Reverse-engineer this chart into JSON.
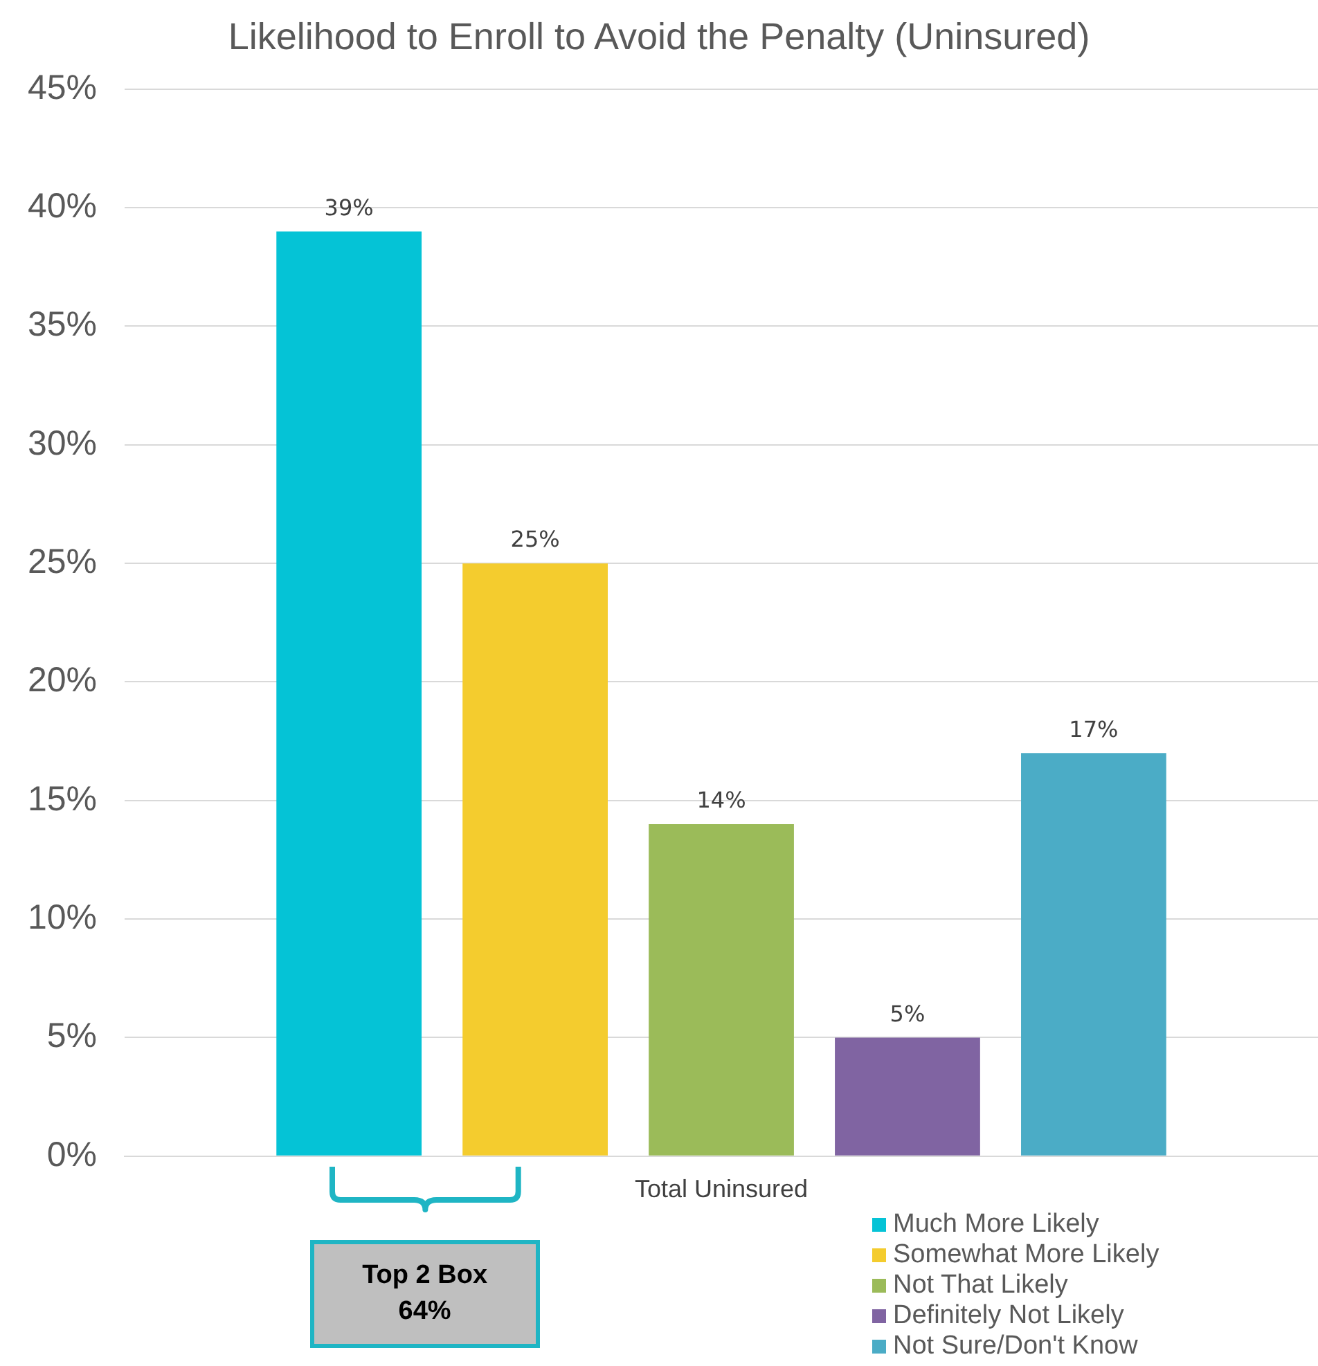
{
  "chart_data": {
    "type": "bar",
    "title": "Likelihood to Enroll to Avoid the Penalty (Uninsured)",
    "categories": [
      "Total Uninsured"
    ],
    "series": [
      {
        "name": "Much More Likely",
        "color": "#05c3d6",
        "values": [
          39
        ],
        "value_labels": [
          "39%"
        ]
      },
      {
        "name": "Somewhat More Likely",
        "color": "#f4cc2e",
        "values": [
          25
        ],
        "value_labels": [
          "25%"
        ]
      },
      {
        "name": "Not That Likely",
        "color": "#9bbb59",
        "values": [
          14
        ],
        "value_labels": [
          "14%"
        ]
      },
      {
        "name": "Definitely Not Likely",
        "color": "#8064a2",
        "values": [
          5
        ],
        "value_labels": [
          "5%"
        ]
      },
      {
        "name": "Not Sure/Don't Know",
        "color": "#4bacc6",
        "values": [
          17
        ],
        "value_labels": [
          "17%"
        ]
      }
    ],
    "ylim": [
      0,
      45
    ],
    "yticks": [
      {
        "value": 0,
        "label": "0%"
      },
      {
        "value": 5,
        "label": "5%"
      },
      {
        "value": 10,
        "label": "10%"
      },
      {
        "value": 15,
        "label": "15%"
      },
      {
        "value": 20,
        "label": "20%"
      },
      {
        "value": 25,
        "label": "25%"
      },
      {
        "value": 30,
        "label": "30%"
      },
      {
        "value": 35,
        "label": "35%"
      },
      {
        "value": 40,
        "label": "40%"
      },
      {
        "value": 45,
        "label": "45%"
      }
    ],
    "grid": "y",
    "legend": "bottom right",
    "annotations": [
      "Top 2 Box\n64%"
    ]
  }
}
